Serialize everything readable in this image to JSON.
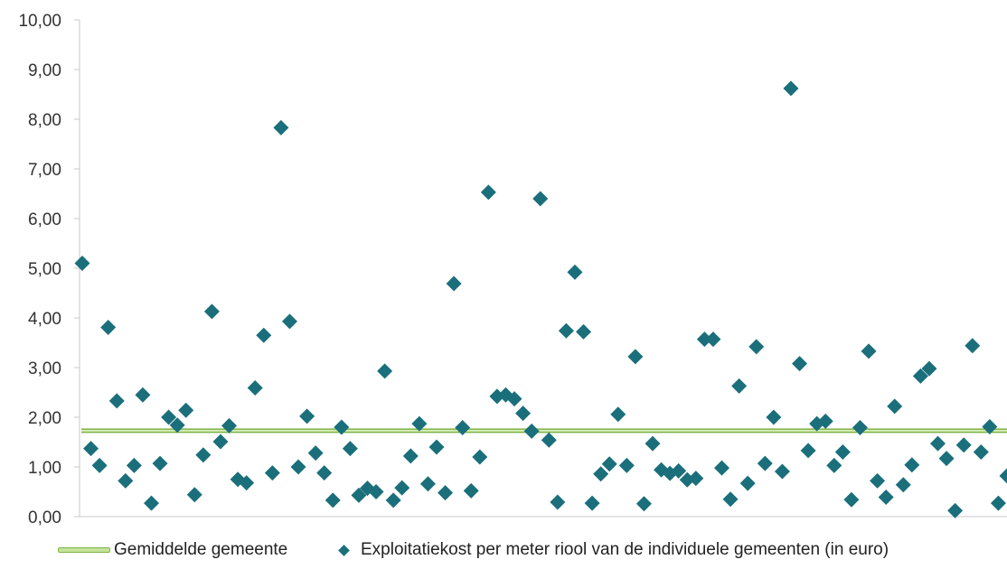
{
  "chart_data": {
    "type": "scatter",
    "ylim": [
      0,
      10
    ],
    "y_ticks": [
      "0,00",
      "1,00",
      "2,00",
      "3,00",
      "4,00",
      "5,00",
      "6,00",
      "7,00",
      "8,00",
      "9,00",
      "10,00"
    ],
    "grid": false,
    "legend_position": "bottom",
    "colors": {
      "scatter": "#1a6f7b",
      "average_line": "#9cc96b"
    },
    "series": [
      {
        "name": "Exploitatiekost per meter riool van de individuele gemeenten (in euro)",
        "type": "scatter",
        "values": [
          5.1,
          1.37,
          1.03,
          3.81,
          2.33,
          0.72,
          1.03,
          2.45,
          0.27,
          1.07,
          2.0,
          1.84,
          2.14,
          0.44,
          1.24,
          4.13,
          1.51,
          1.83,
          0.75,
          0.68,
          2.59,
          3.65,
          0.88,
          7.83,
          3.93,
          1.0,
          2.02,
          1.28,
          0.88,
          0.33,
          1.8,
          1.37,
          0.43,
          0.57,
          0.5,
          2.93,
          0.33,
          0.58,
          1.22,
          1.87,
          0.66,
          1.4,
          0.48,
          4.69,
          1.79,
          0.52,
          1.2,
          6.53,
          2.42,
          2.45,
          2.37,
          2.08,
          1.72,
          6.4,
          1.54,
          0.29,
          3.74,
          4.92,
          3.72,
          0.27,
          0.86,
          1.06,
          2.06,
          1.03,
          3.22,
          0.26,
          1.47,
          0.94,
          0.87,
          0.92,
          0.74,
          0.77,
          3.57,
          3.57,
          0.98,
          0.35,
          2.63,
          0.67,
          3.42,
          1.07,
          2.0,
          0.91,
          8.62,
          3.08,
          1.33,
          1.87,
          1.92,
          1.03,
          1.3,
          0.34,
          1.79,
          3.33,
          0.72,
          0.39,
          2.22,
          0.64,
          1.04,
          2.83,
          2.98,
          1.47,
          1.17,
          0.12,
          1.44,
          3.44,
          1.3,
          1.81,
          0.27,
          0.82
        ]
      },
      {
        "name": "Gemiddelde gemeente",
        "type": "line",
        "value": 1.73
      }
    ]
  }
}
